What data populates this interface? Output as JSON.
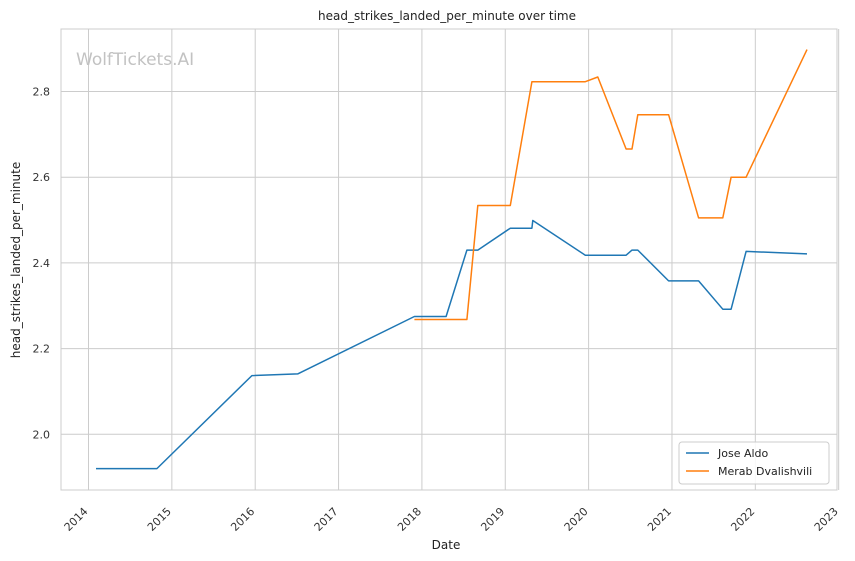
{
  "chart_data": {
    "type": "line",
    "title": "head_strikes_landed_per_minute over time",
    "xlabel": "Date",
    "ylabel": "head_strikes_landed_per_minute",
    "watermark": "WolfTickets.AI",
    "xlim": [
      2013.67,
      2022.98
    ],
    "ylim": [
      1.87,
      2.946
    ],
    "x_ticks": [
      2014,
      2015,
      2016,
      2017,
      2018,
      2019,
      2020,
      2021,
      2022,
      2023
    ],
    "y_ticks": [
      "2.0",
      "2.2",
      "2.4",
      "2.6",
      "2.8"
    ],
    "grid": true,
    "legend_position": "lower-right",
    "series": [
      {
        "name": "Jose Aldo",
        "color": "#1f77b4",
        "points": [
          [
            2014.09,
            1.92
          ],
          [
            2014.82,
            1.92
          ],
          [
            2015.96,
            2.137
          ],
          [
            2016.51,
            2.141
          ],
          [
            2017.91,
            2.275
          ],
          [
            2018.29,
            2.275
          ],
          [
            2018.54,
            2.43
          ],
          [
            2018.67,
            2.43
          ],
          [
            2019.06,
            2.481
          ],
          [
            2019.32,
            2.481
          ],
          [
            2019.33,
            2.499
          ],
          [
            2019.96,
            2.418
          ],
          [
            2020.45,
            2.418
          ],
          [
            2020.52,
            2.43
          ],
          [
            2020.59,
            2.43
          ],
          [
            2020.96,
            2.358
          ],
          [
            2021.32,
            2.358
          ],
          [
            2021.61,
            2.292
          ],
          [
            2021.71,
            2.292
          ],
          [
            2021.89,
            2.427
          ],
          [
            2022.62,
            2.421
          ]
        ]
      },
      {
        "name": "Merab Dvalishvili",
        "color": "#ff7f0e",
        "points": [
          [
            2017.91,
            2.268
          ],
          [
            2018.54,
            2.268
          ],
          [
            2018.67,
            2.534
          ],
          [
            2019.06,
            2.534
          ],
          [
            2019.32,
            2.823
          ],
          [
            2019.96,
            2.823
          ],
          [
            2020.11,
            2.834
          ],
          [
            2020.45,
            2.666
          ],
          [
            2020.52,
            2.666
          ],
          [
            2020.59,
            2.746
          ],
          [
            2020.96,
            2.746
          ],
          [
            2021.32,
            2.505
          ],
          [
            2021.61,
            2.505
          ],
          [
            2021.71,
            2.6
          ],
          [
            2021.89,
            2.6
          ],
          [
            2022.62,
            2.898
          ]
        ]
      }
    ]
  }
}
